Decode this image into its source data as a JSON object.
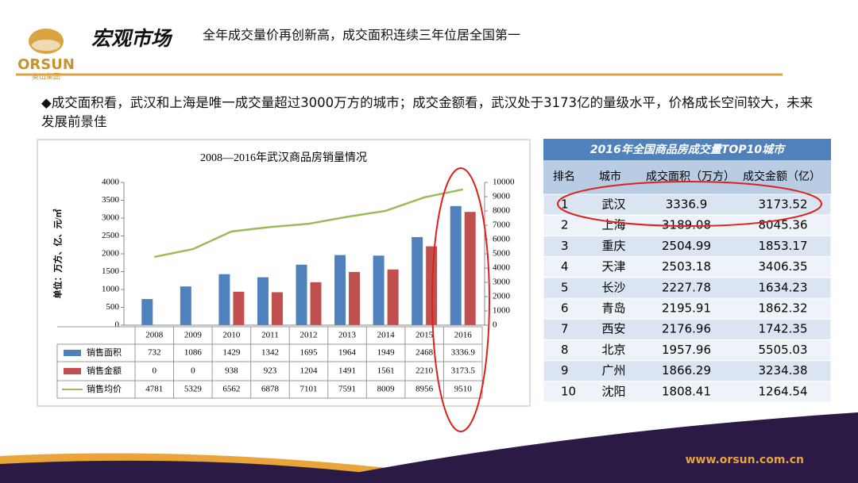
{
  "header": {
    "logo": "ORSUN",
    "logo_sub": "奥山集团",
    "title": "宏观市场",
    "subtitle": "全年成交量价再创新高，成交面积连续三年位居全国第一"
  },
  "bullet": "◆成交面积看，武汉和上海是唯一成交量超过3000万方的城市；成交金额看，武汉处于3173亿的量级水平，价格成长空间较大，未来发展前景佳",
  "chart_data": {
    "type": "bar",
    "title": "2008—2016年武汉商品房销量情况",
    "y_label": "单位：万方、亿、元/㎡",
    "categories": [
      "2008",
      "2009",
      "2010",
      "2011",
      "2012",
      "2013",
      "2014",
      "2015",
      "2016"
    ],
    "series": [
      {
        "name": "销售面积",
        "color": "#4f81bd",
        "values": [
          732,
          1086,
          1429,
          1342,
          1695,
          1964,
          1949,
          2468,
          3336.9
        ]
      },
      {
        "name": "销售金额",
        "color": "#c0504d",
        "values": [
          0,
          0,
          938,
          923,
          1204,
          1491,
          1561,
          2210,
          3173.5
        ]
      },
      {
        "name": "销售均价",
        "color": "#9bbb59",
        "type": "line",
        "axis": "y2",
        "values": [
          4781,
          5329,
          6562,
          6878,
          7101,
          7591,
          8009,
          8956,
          9510
        ]
      }
    ],
    "ylim": [
      0,
      4000
    ],
    "yticks": [
      0,
      500,
      1000,
      1500,
      2000,
      2500,
      3000,
      3500,
      4000
    ],
    "y2lim": [
      0,
      10000
    ],
    "y2ticks": [
      0,
      1000,
      2000,
      3000,
      4000,
      5000,
      6000,
      7000,
      8000,
      9000,
      10000
    ]
  },
  "table": {
    "title": "2016年全国商品房成交量TOP10城市",
    "columns": [
      "排名",
      "城市",
      "成交面积（万方）",
      "成交金额（亿）"
    ],
    "rows": [
      [
        "1",
        "武汉",
        "3336.9",
        "3173.52"
      ],
      [
        "2",
        "上海",
        "3189.08",
        "8045.36"
      ],
      [
        "3",
        "重庆",
        "2504.99",
        "1853.17"
      ],
      [
        "4",
        "天津",
        "2503.18",
        "3406.35"
      ],
      [
        "5",
        "长沙",
        "2227.78",
        "1634.23"
      ],
      [
        "6",
        "青岛",
        "2195.91",
        "1862.32"
      ],
      [
        "7",
        "西安",
        "2176.96",
        "1742.35"
      ],
      [
        "8",
        "北京",
        "1957.96",
        "5505.03"
      ],
      [
        "9",
        "广州",
        "1866.29",
        "3234.38"
      ],
      [
        "10",
        "沈阳",
        "1808.41",
        "1264.54"
      ]
    ]
  },
  "footer": {
    "website": "www.orsun.com.cn"
  }
}
